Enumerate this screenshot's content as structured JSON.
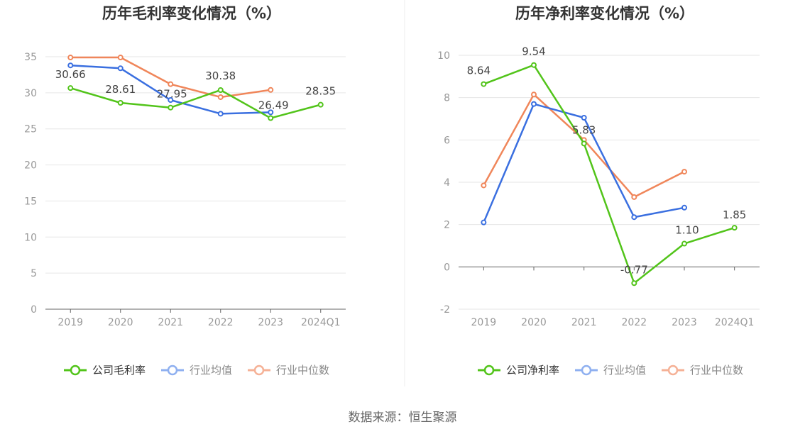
{
  "source_text": "数据来源：恒生聚源",
  "chart_data": [
    {
      "type": "line",
      "title": "历年毛利率变化情况（%）",
      "xlabel": "",
      "ylabel": "",
      "categories": [
        "2019",
        "2020",
        "2021",
        "2022",
        "2023",
        "2024Q1"
      ],
      "ylim": [
        0,
        35
      ],
      "yticks": [
        0,
        5,
        10,
        15,
        20,
        25,
        30,
        35
      ],
      "grid": true,
      "legend_position": "bottom",
      "series": [
        {
          "name": "公司毛利率",
          "color": "#52c41a",
          "values": [
            30.66,
            28.61,
            27.95,
            30.38,
            26.49,
            28.35
          ],
          "labels": [
            "30.66",
            "28.61",
            "27.95",
            "30.38",
            "26.49",
            "28.35"
          ]
        },
        {
          "name": "行业均值",
          "color": "#3a6fe0",
          "values": [
            33.8,
            33.4,
            29.0,
            27.1,
            27.3,
            null
          ]
        },
        {
          "name": "行业中位数",
          "color": "#f0865a",
          "values": [
            34.9,
            34.9,
            31.2,
            29.4,
            30.4,
            null
          ]
        }
      ]
    },
    {
      "type": "line",
      "title": "历年净利率变化情况（%）",
      "xlabel": "",
      "ylabel": "",
      "categories": [
        "2019",
        "2020",
        "2021",
        "2022",
        "2023",
        "2024Q1"
      ],
      "ylim": [
        -2,
        10
      ],
      "yticks": [
        -2,
        0,
        2,
        4,
        6,
        8,
        10
      ],
      "grid": true,
      "legend_position": "bottom",
      "series": [
        {
          "name": "公司净利率",
          "color": "#52c41a",
          "values": [
            8.64,
            9.54,
            5.83,
            -0.77,
            1.1,
            1.85
          ],
          "labels": [
            "8.64",
            "9.54",
            "5.83",
            "-0.77",
            "1.10",
            "1.85"
          ]
        },
        {
          "name": "行业均值",
          "color": "#3a6fe0",
          "values": [
            2.1,
            7.7,
            7.05,
            2.35,
            2.8,
            null
          ]
        },
        {
          "name": "行业中位数",
          "color": "#f0865a",
          "values": [
            3.85,
            8.15,
            6.0,
            3.3,
            4.5,
            null
          ]
        }
      ]
    }
  ]
}
